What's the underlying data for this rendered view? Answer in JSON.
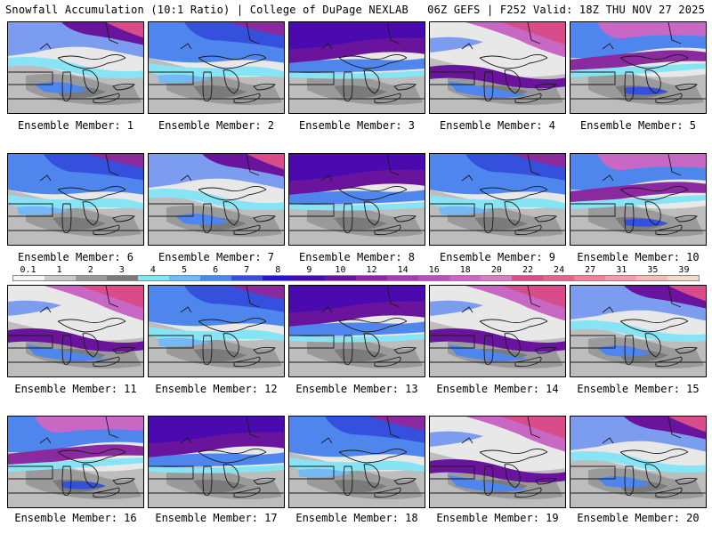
{
  "header": {
    "left": "Snowfall Accumulation (10:1 Ratio) | College of DuPage NEXLAB",
    "right": "06Z GEFS | F252 Valid: 18Z THU NOV 27 2025"
  },
  "colorbar": {
    "labels": [
      "0.1",
      "1",
      "2",
      "3",
      "4",
      "5",
      "6",
      "7",
      "8",
      "9",
      "10",
      "12",
      "14",
      "16",
      "18",
      "20",
      "22",
      "24",
      "27",
      "31",
      "35",
      "39"
    ],
    "colors": [
      "#f4f4f4",
      "#c9c9c9",
      "#9a9a9a",
      "#7a7a7a",
      "#86e4f4",
      "#74b8f4",
      "#4f86ee",
      "#3450dc",
      "#2a16c8",
      "#4a0ab0",
      "#6a149e",
      "#8a2a9e",
      "#a040aa",
      "#b454bb",
      "#c868c4",
      "#d27ec8",
      "#d84c8a",
      "#e0648c",
      "#e8849c",
      "#eea0a8",
      "#f2bcb8",
      "#f6d8c8"
    ]
  },
  "members": [
    {
      "label": "Ensemble Member: 1",
      "snow_scheme": 0
    },
    {
      "label": "Ensemble Member: 2",
      "snow_scheme": 1
    },
    {
      "label": "Ensemble Member: 3",
      "snow_scheme": 2
    },
    {
      "label": "Ensemble Member: 4",
      "snow_scheme": 3
    },
    {
      "label": "Ensemble Member: 5",
      "snow_scheme": 4
    },
    {
      "label": "Ensemble Member: 6",
      "snow_scheme": 1
    },
    {
      "label": "Ensemble Member: 7",
      "snow_scheme": 0
    },
    {
      "label": "Ensemble Member: 8",
      "snow_scheme": 2
    },
    {
      "label": "Ensemble Member: 9",
      "snow_scheme": 1
    },
    {
      "label": "Ensemble Member: 10",
      "snow_scheme": 4
    },
    {
      "label": "Ensemble Member: 11",
      "snow_scheme": 3
    },
    {
      "label": "Ensemble Member: 12",
      "snow_scheme": 1
    },
    {
      "label": "Ensemble Member: 13",
      "snow_scheme": 2
    },
    {
      "label": "Ensemble Member: 14",
      "snow_scheme": 3
    },
    {
      "label": "Ensemble Member: 15",
      "snow_scheme": 0
    },
    {
      "label": "Ensemble Member: 16",
      "snow_scheme": 4
    },
    {
      "label": "Ensemble Member: 17",
      "snow_scheme": 2
    },
    {
      "label": "Ensemble Member: 18",
      "snow_scheme": 1
    },
    {
      "label": "Ensemble Member: 19",
      "snow_scheme": 3
    },
    {
      "label": "Ensemble Member: 20",
      "snow_scheme": 0
    }
  ]
}
